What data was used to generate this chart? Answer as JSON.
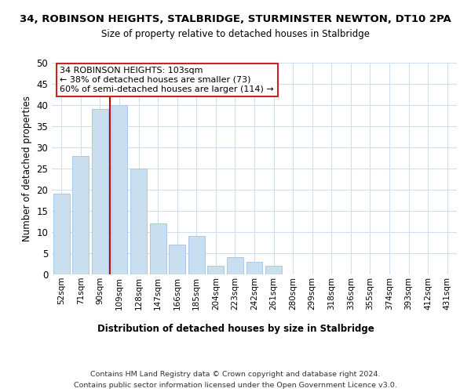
{
  "title_line1": "34, ROBINSON HEIGHTS, STALBRIDGE, STURMINSTER NEWTON, DT10 2PA",
  "title_line2": "Size of property relative to detached houses in Stalbridge",
  "xlabel": "Distribution of detached houses by size in Stalbridge",
  "ylabel": "Number of detached properties",
  "bar_labels": [
    "52sqm",
    "71sqm",
    "90sqm",
    "109sqm",
    "128sqm",
    "147sqm",
    "166sqm",
    "185sqm",
    "204sqm",
    "223sqm",
    "242sqm",
    "261sqm",
    "280sqm",
    "299sqm",
    "318sqm",
    "336sqm",
    "355sqm",
    "374sqm",
    "393sqm",
    "412sqm",
    "431sqm"
  ],
  "bar_values": [
    19,
    28,
    39,
    40,
    25,
    12,
    7,
    9,
    2,
    4,
    3,
    2,
    0,
    0,
    0,
    0,
    0,
    0,
    0,
    0,
    0
  ],
  "bar_color": "#c9dff0",
  "bar_edge_color": "#a8c8e8",
  "grid_color": "#d0dff0",
  "vline_color": "#cc0000",
  "annotation_line1": "34 ROBINSON HEIGHTS: 103sqm",
  "annotation_line2": "← 38% of detached houses are smaller (73)",
  "annotation_line3": "60% of semi-detached houses are larger (114) →",
  "annotation_box_color": "#ffffff",
  "annotation_box_edge": "#cc2222",
  "ylim": [
    0,
    50
  ],
  "yticks": [
    0,
    5,
    10,
    15,
    20,
    25,
    30,
    35,
    40,
    45,
    50
  ],
  "footer_line1": "Contains HM Land Registry data © Crown copyright and database right 2024.",
  "footer_line2": "Contains public sector information licensed under the Open Government Licence v3.0.",
  "bg_color": "#ffffff"
}
